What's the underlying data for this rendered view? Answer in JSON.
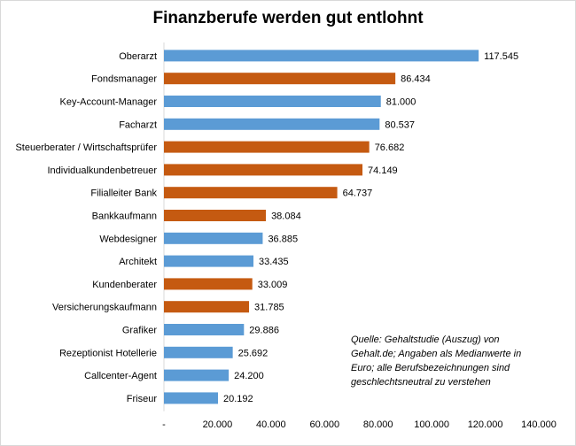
{
  "chart_data": {
    "type": "bar",
    "orientation": "horizontal",
    "title": "Finanzberufe werden gut entlohnt",
    "categories": [
      "Oberarzt",
      "Fondsmanager",
      "Key-Account-Manager",
      "Facharzt",
      "Steuerberater / Wirtschaftsprüfer",
      "Individualkundenbetreuer",
      "Filialleiter Bank",
      "Bankkaufmann",
      "Webdesigner",
      "Architekt",
      "Kundenberater",
      "Versicherungskaufmann",
      "Grafiker",
      "Rezeptionist Hotellerie",
      "Callcenter-Agent",
      "Friseur"
    ],
    "values": [
      117545,
      86434,
      81000,
      80537,
      76682,
      74149,
      64737,
      38084,
      36885,
      33435,
      33009,
      31785,
      29886,
      25692,
      24200,
      20192
    ],
    "value_labels": [
      "117.545",
      "86.434",
      "81.000",
      "80.537",
      "76.682",
      "74.149",
      "64.737",
      "38.084",
      "36.885",
      "33.435",
      "33.009",
      "31.785",
      "29.886",
      "25.692",
      "24.200",
      "20.192"
    ],
    "group": [
      "other",
      "finance",
      "other",
      "other",
      "finance",
      "finance",
      "finance",
      "finance",
      "other",
      "other",
      "finance",
      "finance",
      "other",
      "other",
      "other",
      "other"
    ],
    "xlim": [
      0,
      140000
    ],
    "x_ticks": [
      0,
      20000,
      40000,
      60000,
      80000,
      100000,
      120000,
      140000
    ],
    "x_tick_labels": [
      "-",
      "20.000",
      "40.000",
      "60.000",
      "80.000",
      "100.000",
      "120.000",
      "140.000"
    ],
    "grid": false,
    "legend": "none",
    "colors": {
      "finance": "#c55a11",
      "other": "#5b9bd5"
    }
  },
  "note": "Quelle: Gehaltstudie (Auszug) von Gehalt.de; Angaben als Medianwerte in Euro; alle Berufsbezeichnungen sind geschlechtsneutral zu verstehen"
}
